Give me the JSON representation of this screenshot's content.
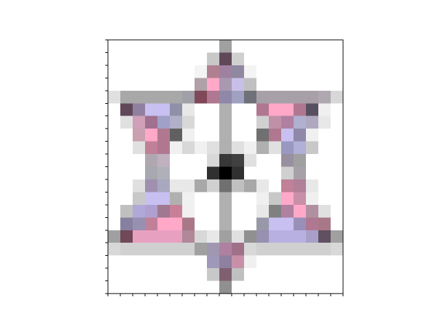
{
  "chart_data": {
    "type": "image",
    "pixels": [
      [
        "#fff",
        "#fff",
        "#fff",
        "#fff",
        "#fff",
        "#fff",
        "#fff",
        "#fff",
        "#fff",
        "#a0a0a0",
        "#fff",
        "#fff",
        "#fff",
        "#fff",
        "#fff",
        "#fff",
        "#fff",
        "#fff",
        "#fff"
      ],
      [
        "#fff",
        "#fff",
        "#fff",
        "#fff",
        "#fff",
        "#fff",
        "#fff",
        "#fff",
        "#c8c8c8",
        "#604858",
        "#d0d0d0",
        "#fff",
        "#fff",
        "#fff",
        "#fff",
        "#fff",
        "#fff",
        "#fff",
        "#fff"
      ],
      [
        "#fff",
        "#fff",
        "#fff",
        "#fff",
        "#fff",
        "#fff",
        "#fff",
        "#f4f4f4",
        "#b08090",
        "#a080a0",
        "#9088a0",
        "#f4f4f4",
        "#fff",
        "#fff",
        "#fff",
        "#fff",
        "#fff",
        "#fff",
        "#fff"
      ],
      [
        "#fff",
        "#fff",
        "#fff",
        "#fff",
        "#fff",
        "#fff",
        "#fff",
        "#b0a0a8",
        "#ffa8c8",
        "#a898b0",
        "#c8c0e8",
        "#c0c0c0",
        "#fff",
        "#fff",
        "#fff",
        "#fff",
        "#fff",
        "#fff",
        "#fff"
      ],
      [
        "#e0e0e0",
        "#a8a8a8",
        "#a8a8a8",
        "#a8a8a8",
        "#a8a8a8",
        "#a8a8a8",
        "#a0a0a8",
        "#804858",
        "#b07890",
        "#9088a8",
        "#a0a0c0",
        "#707078",
        "#a8a0a8",
        "#a8a0a8",
        "#a8a0a8",
        "#a8a0a8",
        "#a8a0a8",
        "#b0a8b0",
        "#d8d8d8"
      ],
      [
        "#fff",
        "#604858",
        "#9080a0",
        "#c8c0f0",
        "#c8c0f0",
        "#9090a8",
        "#e8e8e8",
        "#fff",
        "#fff",
        "#b0b0b0",
        "#fff",
        "#fff",
        "#b07890",
        "#ffa8c8",
        "#ffa8c8",
        "#b07890",
        "#585060",
        "#f0f0f0",
        "#fff"
      ],
      [
        "#fff",
        "#e0e0e0",
        "#d0a0b8",
        "#a07090",
        "#a0a0c8",
        "#b0b0c8",
        "#d8d8d8",
        "#fff",
        "#fff",
        "#b0b0b0",
        "#fff",
        "#fff",
        "#d0d0d0",
        "#c090a8",
        "#b080a0",
        "#b0b0d0",
        "#b0a8c0",
        "#e8e8e8",
        "#fff"
      ],
      [
        "#fff",
        "#fff",
        "#c8a0b0",
        "#ffa8c8",
        "#b07890",
        "#606060",
        "#f0f0f0",
        "#fff",
        "#fff",
        "#b0b0b0",
        "#fff",
        "#fff",
        "#707070",
        "#b07890",
        "#c8c0f0",
        "#9088a8",
        "#f0f0f0",
        "#fff",
        "#fff"
      ],
      [
        "#fff",
        "#fff",
        "#e0e0e0",
        "#c08098",
        "#b07890",
        "#f0f0f0",
        "#d8d8d8",
        "#f0f0f0",
        "#e0e0e0",
        "#b0b0b0",
        "#e0e0e0",
        "#f0f0f0",
        "#b0b0b0",
        "#e0e0e0",
        "#9898c0",
        "#b0b0d8",
        "#c8c8c8",
        "#fff",
        "#fff"
      ],
      [
        "#fff",
        "#fff",
        "#fff",
        "#b0a8b0",
        "#c0b0c0",
        "#fff",
        "#fff",
        "#fff",
        "#d8d8d8",
        "#383838",
        "#404040",
        "#e0e0e0",
        "#fff",
        "#fff",
        "#9890a0",
        "#a0a0a0",
        "#fff",
        "#fff",
        "#fff"
      ],
      [
        "#fff",
        "#fff",
        "#fff",
        "#a8a8b0",
        "#b0b0b8",
        "#fff",
        "#fff",
        "#fff",
        "#303030",
        "#000000",
        "#303030",
        "#fff",
        "#fff",
        "#fff",
        "#d0d0d0",
        "#a8a0a8",
        "#fff",
        "#fff",
        "#fff"
      ],
      [
        "#fff",
        "#fff",
        "#e0e0e0",
        "#a090b0",
        "#a8a8c0",
        "#e8e8e8",
        "#e8e8e8",
        "#a8a8a8",
        "#d0d0d0",
        "#707070",
        "#c0c0c0",
        "#a8a8a8",
        "#e8e8e8",
        "#fff",
        "#c08098",
        "#b08098",
        "#e8e8e8",
        "#fff",
        "#fff"
      ],
      [
        "#fff",
        "#fff",
        "#c8c8c8",
        "#c8c0f0",
        "#c8c0f0",
        "#b0b0b0",
        "#f0f0f0",
        "#fff",
        "#fff",
        "#b0b0b0",
        "#fff",
        "#fff",
        "#f0f0f0",
        "#c8c8c8",
        "#ffa8c8",
        "#c890a8",
        "#f0f0f0",
        "#fff",
        "#fff"
      ],
      [
        "#fff",
        "#c0c0c0",
        "#b0a8d8",
        "#b0a0d0",
        "#a07890",
        "#c88098",
        "#f0f0f0",
        "#fff",
        "#fff",
        "#b0b0b0",
        "#fff",
        "#fff",
        "#e8e8e8",
        "#808080",
        "#b080a0",
        "#ffa8c8",
        "#b090a0",
        "#e0e0e0",
        "#fff"
      ],
      [
        "#fff",
        "#8880a0",
        "#9890b0",
        "#c08098",
        "#ffa8c8",
        "#ffa8c8",
        "#a87888",
        "#fff",
        "#fff",
        "#b0b0b0",
        "#fff",
        "#fff",
        "#9898a8",
        "#c8c0f0",
        "#c8c0f0",
        "#9890b8",
        "#b07890",
        "#a87888",
        "#fff"
      ],
      [
        "#a0a0a0",
        "#704858",
        "#e8a0c0",
        "#e8a0c0",
        "#e8a0c0",
        "#e8a0c0",
        "#b08898",
        "#d8d8d8",
        "#e8e8e8",
        "#a0a0a0",
        "#e0e0e0",
        "#909090",
        "#9890b0",
        "#b8b0e0",
        "#b8b0e0",
        "#b8b0e0",
        "#a8a0c8",
        "#605060",
        "#a0a0a0"
      ],
      [
        "#d8d8d8",
        "#d0d0d0",
        "#d0d0d0",
        "#d0d0d0",
        "#d0d0d0",
        "#d0d0d0",
        "#d0d0d0",
        "#a0a0a0",
        "#a098b0",
        "#b080a0",
        "#a07088",
        "#d8d8d8",
        "#d0d0d0",
        "#d0d0d0",
        "#d0d0d0",
        "#d0d0d0",
        "#d0d0d0",
        "#d0d0d0",
        "#d8d8d8"
      ],
      [
        "#fff",
        "#fff",
        "#fff",
        "#fff",
        "#fff",
        "#fff",
        "#fff",
        "#fff",
        "#a098b8",
        "#9080a0",
        "#c890a8",
        "#f0f0f0",
        "#fff",
        "#fff",
        "#fff",
        "#fff",
        "#fff",
        "#fff",
        "#fff"
      ],
      [
        "#fff",
        "#fff",
        "#fff",
        "#fff",
        "#fff",
        "#fff",
        "#fff",
        "#fff",
        "#c8c8c8",
        "#806070",
        "#c0c0c0",
        "#fff",
        "#fff",
        "#fff",
        "#fff",
        "#fff",
        "#fff",
        "#fff",
        "#fff"
      ],
      [
        "#fff",
        "#fff",
        "#fff",
        "#fff",
        "#fff",
        "#fff",
        "#fff",
        "#fff",
        "#fff",
        "#909090",
        "#fff",
        "#fff",
        "#fff",
        "#fff",
        "#fff",
        "#fff",
        "#fff",
        "#fff",
        "#fff"
      ]
    ]
  }
}
